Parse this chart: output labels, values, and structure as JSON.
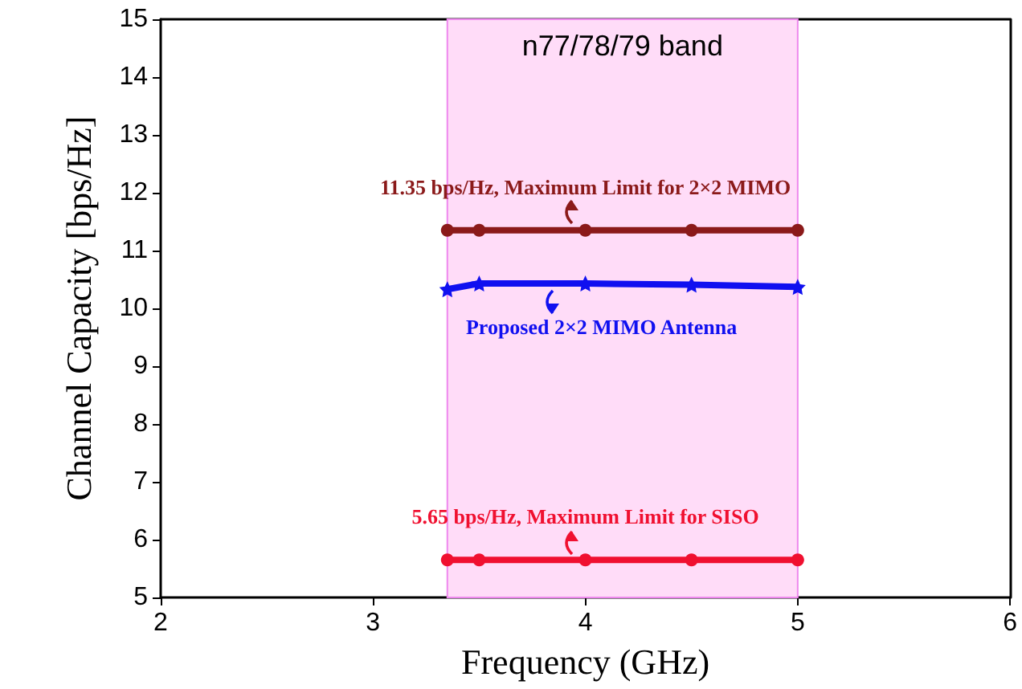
{
  "chart_data": {
    "type": "line",
    "xlabel": "Frequency (GHz)",
    "ylabel": "Channel Capacity [bps/Hz]",
    "xlim": [
      2,
      6
    ],
    "xticks": [
      2,
      3,
      4,
      5,
      6
    ],
    "ylim": [
      5,
      15
    ],
    "yticks": [
      5,
      6,
      7,
      8,
      9,
      10,
      11,
      12,
      13,
      14,
      15
    ],
    "grid": false,
    "line_style": "solid",
    "series": [
      {
        "color": "#8b1a1a",
        "marker": "circle",
        "x": [
          3.35,
          3.5,
          4,
          4.5,
          5
        ],
        "values": [
          11.35,
          11.35,
          11.35,
          11.35,
          11.35
        ]
      },
      {
        "color": "#1010f0",
        "marker": "star",
        "x": [
          3.35,
          3.5,
          4,
          4.5,
          5
        ],
        "values": [
          10.33,
          10.43,
          10.43,
          10.41,
          10.37
        ]
      },
      {
        "color": "#f01030",
        "marker": "circle",
        "x": [
          3.35,
          3.5,
          4,
          4.5,
          5
        ],
        "values": [
          5.65,
          5.65,
          5.65,
          5.65,
          5.65
        ]
      }
    ],
    "bands": [
      {
        "axis": "x",
        "from": 3.35,
        "to": 5,
        "label": "n77/78/79 band",
        "color": "#ffdcf8"
      }
    ],
    "annotations": [
      "11.35 bps/Hz, Maximum Limit for 2×2 MIMO",
      "Proposed 2×2 MIMO Antenna",
      "5.65 bps/Hz, Maximum Limit for SISO"
    ]
  }
}
